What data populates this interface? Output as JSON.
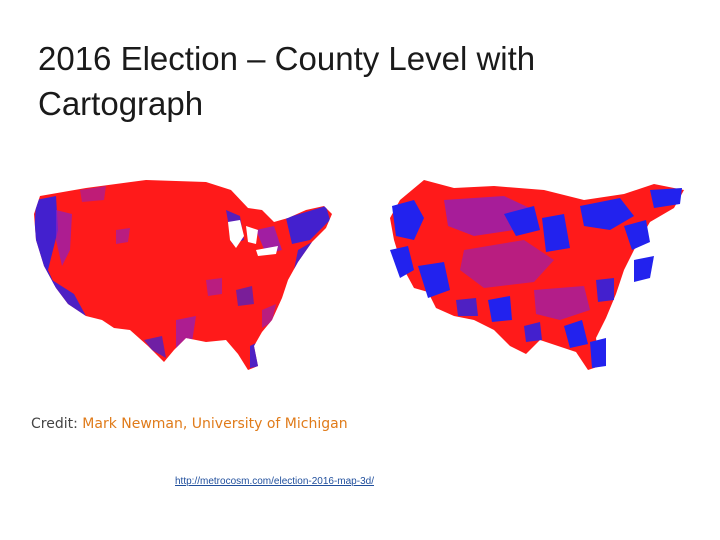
{
  "slide": {
    "title": "2016 Election – County Level with Cartograph"
  },
  "maps": {
    "left_map": "geographic",
    "right_map": "cartogram",
    "colors": {
      "republican": "#ff1a1a",
      "democrat": "#2222ee",
      "mixed": "#8a1fc4"
    }
  },
  "credit": {
    "prefix": "Credit:",
    "name": "Mark Newman, University of Michigan"
  },
  "source": {
    "url_text": "http://metrocosm.com/election-2016-map-3d/"
  }
}
